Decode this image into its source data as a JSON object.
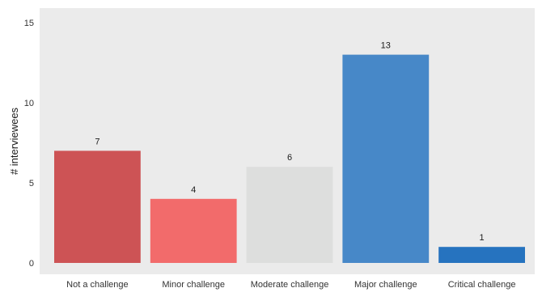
{
  "chart_data": {
    "type": "bar",
    "categories": [
      "Not a challenge",
      "Minor challenge",
      "Moderate challenge",
      "Major challenge",
      "Critical challenge"
    ],
    "values": [
      7,
      4,
      6,
      13,
      1
    ],
    "colors": [
      "#cd5355",
      "#f26b6b",
      "#dddedd",
      "#4788c8",
      "#2673bf"
    ],
    "title": "",
    "xlabel": "",
    "ylabel": "# interviewees",
    "ylim": [
      0,
      15
    ],
    "yticks": [
      0,
      5,
      10,
      15
    ],
    "grid": false,
    "panel_background": "#ebebeb"
  }
}
